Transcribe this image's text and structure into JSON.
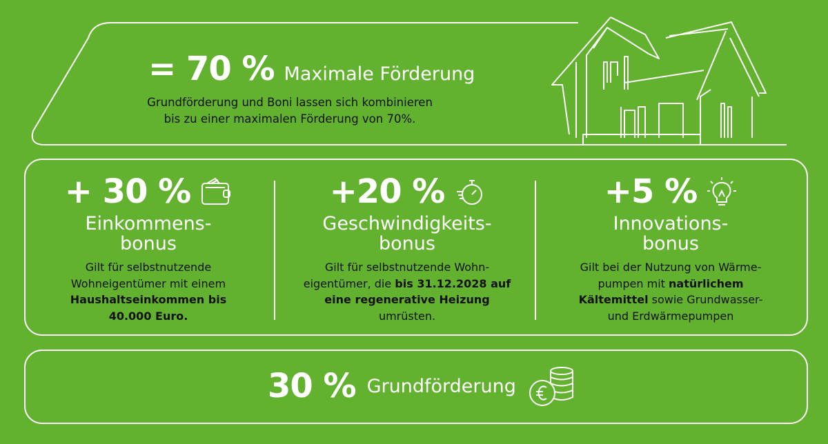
{
  "top": {
    "percent": "= 70 %",
    "label": "Maximale Förderung",
    "text_line1": "Grundförderung und Boni lassen sich kombinieren",
    "text_line2": "bis zu einer maximalen Förderung von 70%."
  },
  "bonuses": [
    {
      "percent": "+ 30 %",
      "icon": "wallet-icon",
      "title1": "Einkommens-",
      "title2": "bonus",
      "body": [
        {
          "t": "Gilt für selbstnutzende",
          "b": ""
        },
        {
          "t": "Wohneigentümer mit einem",
          "b": ""
        },
        {
          "t": "",
          "b": "Haushaltseinkommen bis"
        },
        {
          "t": "",
          "b": "40.000 Euro."
        }
      ]
    },
    {
      "percent": "+20 %",
      "icon": "stopwatch-icon",
      "title1": "Geschwindigkeits-",
      "title2": "bonus",
      "body": [
        {
          "t": "Gilt für selbstnutzende Wohn-",
          "b": ""
        },
        {
          "t": "eigentümer, die ",
          "b": "bis 31.12.2028 auf"
        },
        {
          "t": "",
          "b": "eine regenerative Heizung"
        },
        {
          "t": "umrüsten.",
          "b": ""
        }
      ]
    },
    {
      "percent": "+5 %",
      "icon": "lightbulb-icon",
      "title1": "Innovations-",
      "title2": "bonus",
      "body": [
        {
          "t": "Gilt bei der Nutzung von Wärme-",
          "b": ""
        },
        {
          "t": "pumpen mit ",
          "b": "natürlichem"
        },
        {
          "t": "",
          "b": "Kältemittel",
          "t2": " sowie Grundwasser-"
        },
        {
          "t": "und Erdwärmepumpen",
          "b": ""
        }
      ]
    }
  ],
  "bottom": {
    "percent": "30 %",
    "label": "Grundförderung",
    "icon": "euro-coins-icon"
  },
  "colors": {
    "background": "#63b22f",
    "text_dark": "#111111",
    "lines": "#ffffff"
  }
}
